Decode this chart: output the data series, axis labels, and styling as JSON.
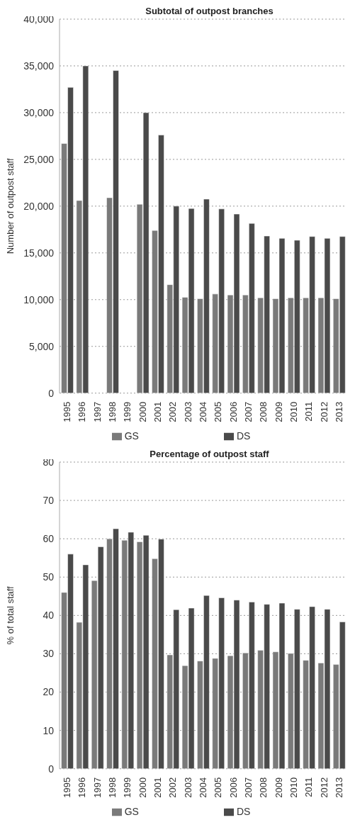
{
  "chart_data": [
    {
      "type": "bar",
      "title": "Subtotal of outpost branches",
      "ylabel": "Number of outpost staff",
      "categories": [
        "1995",
        "1996",
        "1997",
        "1998",
        "1999",
        "2000",
        "2001",
        "2002",
        "2003",
        "2004",
        "2005",
        "2006",
        "2007",
        "2008",
        "2009",
        "2010",
        "2011",
        "2012",
        "2013"
      ],
      "series": [
        {
          "name": "GS",
          "color": "#7a7a7a",
          "values": [
            26700,
            20600,
            null,
            20900,
            null,
            20200,
            17400,
            11600,
            10250,
            10100,
            10600,
            10500,
            10500,
            10200,
            10100,
            10200,
            10200,
            10200,
            10100
          ]
        },
        {
          "name": "DS",
          "color": "#4a4a4a",
          "values": [
            32700,
            35000,
            null,
            34500,
            null,
            30000,
            27600,
            20000,
            19750,
            20750,
            19700,
            19150,
            18150,
            16800,
            16550,
            16350,
            16750,
            16550,
            16750
          ]
        }
      ],
      "ylim": [
        0,
        40000
      ],
      "yticks": [
        {
          "value": 0,
          "label": "0"
        },
        {
          "value": 5000,
          "label": "5,000"
        },
        {
          "value": 10000,
          "label": "10,000"
        },
        {
          "value": 15000,
          "label": "15,000"
        },
        {
          "value": 20000,
          "label": "20,000"
        },
        {
          "value": 25000,
          "label": "25,000"
        },
        {
          "value": 30000,
          "label": "30,000"
        },
        {
          "value": 35000,
          "label": "35,000"
        },
        {
          "value": 40000,
          "label": "40,000"
        }
      ],
      "grid": "y",
      "legend": "bottom"
    },
    {
      "type": "bar",
      "title": "Percentage of outpost staff",
      "ylabel": "% of total staff",
      "categories": [
        "1995",
        "1996",
        "1997",
        "1998",
        "1999",
        "2000",
        "2001",
        "2002",
        "2003",
        "2004",
        "2005",
        "2006",
        "2007",
        "2008",
        "2009",
        "2010",
        "2011",
        "2012",
        "2013"
      ],
      "series": [
        {
          "name": "GS",
          "color": "#7a7a7a",
          "values": [
            46,
            38.2,
            49.1,
            60,
            59.6,
            59.2,
            54.8,
            29.7,
            26.9,
            28.1,
            28.8,
            29.5,
            30.2,
            30.9,
            30.5,
            30.1,
            28.3,
            27.6,
            27.2
          ]
        },
        {
          "name": "DS",
          "color": "#4a4a4a",
          "values": [
            56,
            53.2,
            57.9,
            62.6,
            61.7,
            60.9,
            59.9,
            41.5,
            41.9,
            45.2,
            44.6,
            44.0,
            43.5,
            42.9,
            43.2,
            41.6,
            42.3,
            41.6,
            38.3
          ]
        }
      ],
      "ylim": [
        0,
        80
      ],
      "yticks": [
        0,
        10,
        20,
        30,
        40,
        50,
        60,
        70,
        80
      ],
      "grid": "y",
      "legend": "bottom"
    }
  ]
}
